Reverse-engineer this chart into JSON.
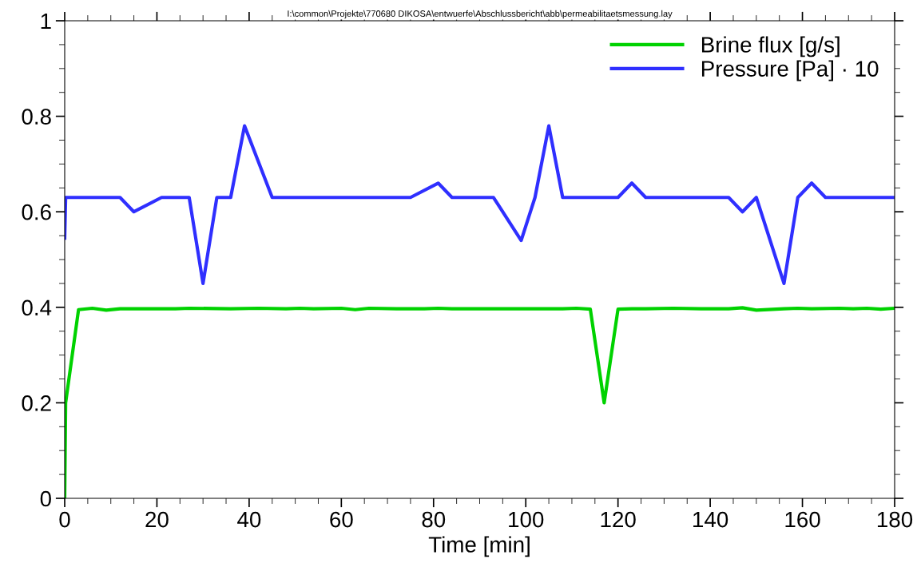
{
  "chart_data": {
    "type": "line",
    "xlabel": "Time [min]",
    "annotations": [
      "I:\\common\\Projekte\\770680 DIKOSA\\entwuerfe\\Abschlussbericht\\abb\\permeabilitaetsmessung.lay"
    ],
    "xlim": [
      0,
      180
    ],
    "xticks": [
      0,
      20,
      40,
      60,
      80,
      100,
      120,
      140,
      160,
      180
    ],
    "ylim": [
      0,
      1
    ],
    "yticks": [
      0,
      0.2,
      0.4,
      0.6,
      0.8,
      1
    ],
    "legend": "top right",
    "grid": false,
    "tick_labels": "xy",
    "series": [
      {
        "name": "Brine flux [g/s]",
        "color": "#00d200",
        "x": [
          0,
          0.2,
          3,
          6,
          9,
          12,
          18,
          24,
          27,
          36,
          42,
          48,
          51,
          54,
          60,
          63,
          66,
          72,
          78,
          81,
          84,
          90,
          96,
          102,
          108,
          111,
          114,
          117,
          120,
          123,
          126,
          132,
          138,
          141,
          144,
          147,
          150,
          156,
          159,
          162,
          168,
          171,
          174,
          177,
          180
        ],
        "values": [
          0,
          0.2,
          0.395,
          0.398,
          0.394,
          0.397,
          0.397,
          0.397,
          0.398,
          0.397,
          0.398,
          0.397,
          0.398,
          0.397,
          0.398,
          0.395,
          0.398,
          0.397,
          0.397,
          0.398,
          0.397,
          0.397,
          0.397,
          0.397,
          0.397,
          0.398,
          0.396,
          0.2,
          0.396,
          0.397,
          0.397,
          0.398,
          0.397,
          0.397,
          0.397,
          0.399,
          0.394,
          0.397,
          0.398,
          0.397,
          0.398,
          0.397,
          0.398,
          0.396,
          0.398
        ]
      },
      {
        "name": "Pressure [Pa] · 10",
        "color": "#2f2fff",
        "x": [
          0,
          0.2,
          12,
          15,
          21,
          27,
          30,
          33,
          36,
          39,
          45,
          75,
          81,
          84,
          93,
          99,
          102,
          105,
          108,
          120,
          123,
          126,
          144,
          147,
          150,
          156,
          159,
          162,
          165,
          180
        ],
        "values": [
          0.545,
          0.63,
          0.63,
          0.6,
          0.63,
          0.63,
          0.45,
          0.63,
          0.63,
          0.78,
          0.63,
          0.63,
          0.66,
          0.63,
          0.63,
          0.54,
          0.63,
          0.78,
          0.63,
          0.63,
          0.66,
          0.63,
          0.63,
          0.6,
          0.63,
          0.45,
          0.63,
          0.66,
          0.63,
          0.63
        ]
      }
    ]
  }
}
